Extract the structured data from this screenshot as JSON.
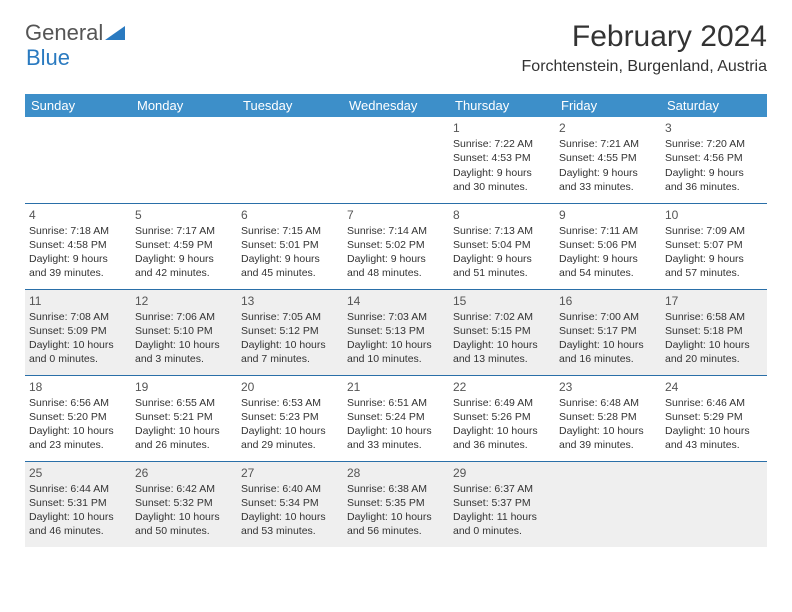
{
  "brand": {
    "part1": "General",
    "part2": "Blue"
  },
  "title": "February 2024",
  "location": "Forchtenstein, Burgenland, Austria",
  "colors": {
    "header_bg": "#3d8fc9",
    "row_border": "#2a6fa8",
    "zebra": "#efefef",
    "text": "#333333"
  },
  "dow": [
    "Sunday",
    "Monday",
    "Tuesday",
    "Wednesday",
    "Thursday",
    "Friday",
    "Saturday"
  ],
  "weeks": [
    [
      null,
      null,
      null,
      null,
      {
        "n": "1",
        "sr": "7:22 AM",
        "ss": "4:53 PM",
        "dh": "9",
        "dm": "30"
      },
      {
        "n": "2",
        "sr": "7:21 AM",
        "ss": "4:55 PM",
        "dh": "9",
        "dm": "33"
      },
      {
        "n": "3",
        "sr": "7:20 AM",
        "ss": "4:56 PM",
        "dh": "9",
        "dm": "36"
      }
    ],
    [
      {
        "n": "4",
        "sr": "7:18 AM",
        "ss": "4:58 PM",
        "dh": "9",
        "dm": "39"
      },
      {
        "n": "5",
        "sr": "7:17 AM",
        "ss": "4:59 PM",
        "dh": "9",
        "dm": "42"
      },
      {
        "n": "6",
        "sr": "7:15 AM",
        "ss": "5:01 PM",
        "dh": "9",
        "dm": "45"
      },
      {
        "n": "7",
        "sr": "7:14 AM",
        "ss": "5:02 PM",
        "dh": "9",
        "dm": "48"
      },
      {
        "n": "8",
        "sr": "7:13 AM",
        "ss": "5:04 PM",
        "dh": "9",
        "dm": "51"
      },
      {
        "n": "9",
        "sr": "7:11 AM",
        "ss": "5:06 PM",
        "dh": "9",
        "dm": "54"
      },
      {
        "n": "10",
        "sr": "7:09 AM",
        "ss": "5:07 PM",
        "dh": "9",
        "dm": "57"
      }
    ],
    [
      {
        "n": "11",
        "sr": "7:08 AM",
        "ss": "5:09 PM",
        "dh": "10",
        "dm": "0"
      },
      {
        "n": "12",
        "sr": "7:06 AM",
        "ss": "5:10 PM",
        "dh": "10",
        "dm": "3"
      },
      {
        "n": "13",
        "sr": "7:05 AM",
        "ss": "5:12 PM",
        "dh": "10",
        "dm": "7"
      },
      {
        "n": "14",
        "sr": "7:03 AM",
        "ss": "5:13 PM",
        "dh": "10",
        "dm": "10"
      },
      {
        "n": "15",
        "sr": "7:02 AM",
        "ss": "5:15 PM",
        "dh": "10",
        "dm": "13"
      },
      {
        "n": "16",
        "sr": "7:00 AM",
        "ss": "5:17 PM",
        "dh": "10",
        "dm": "16"
      },
      {
        "n": "17",
        "sr": "6:58 AM",
        "ss": "5:18 PM",
        "dh": "10",
        "dm": "20"
      }
    ],
    [
      {
        "n": "18",
        "sr": "6:56 AM",
        "ss": "5:20 PM",
        "dh": "10",
        "dm": "23"
      },
      {
        "n": "19",
        "sr": "6:55 AM",
        "ss": "5:21 PM",
        "dh": "10",
        "dm": "26"
      },
      {
        "n": "20",
        "sr": "6:53 AM",
        "ss": "5:23 PM",
        "dh": "10",
        "dm": "29"
      },
      {
        "n": "21",
        "sr": "6:51 AM",
        "ss": "5:24 PM",
        "dh": "10",
        "dm": "33"
      },
      {
        "n": "22",
        "sr": "6:49 AM",
        "ss": "5:26 PM",
        "dh": "10",
        "dm": "36"
      },
      {
        "n": "23",
        "sr": "6:48 AM",
        "ss": "5:28 PM",
        "dh": "10",
        "dm": "39"
      },
      {
        "n": "24",
        "sr": "6:46 AM",
        "ss": "5:29 PM",
        "dh": "10",
        "dm": "43"
      }
    ],
    [
      {
        "n": "25",
        "sr": "6:44 AM",
        "ss": "5:31 PM",
        "dh": "10",
        "dm": "46"
      },
      {
        "n": "26",
        "sr": "6:42 AM",
        "ss": "5:32 PM",
        "dh": "10",
        "dm": "50"
      },
      {
        "n": "27",
        "sr": "6:40 AM",
        "ss": "5:34 PM",
        "dh": "10",
        "dm": "53"
      },
      {
        "n": "28",
        "sr": "6:38 AM",
        "ss": "5:35 PM",
        "dh": "10",
        "dm": "56"
      },
      {
        "n": "29",
        "sr": "6:37 AM",
        "ss": "5:37 PM",
        "dh": "11",
        "dm": "0"
      },
      null,
      null
    ]
  ],
  "labels": {
    "sunrise": "Sunrise:",
    "sunset": "Sunset:",
    "daylight_pre": "Daylight:",
    "hours_word": "hours",
    "and_word": "and",
    "minutes_word": "minutes."
  }
}
